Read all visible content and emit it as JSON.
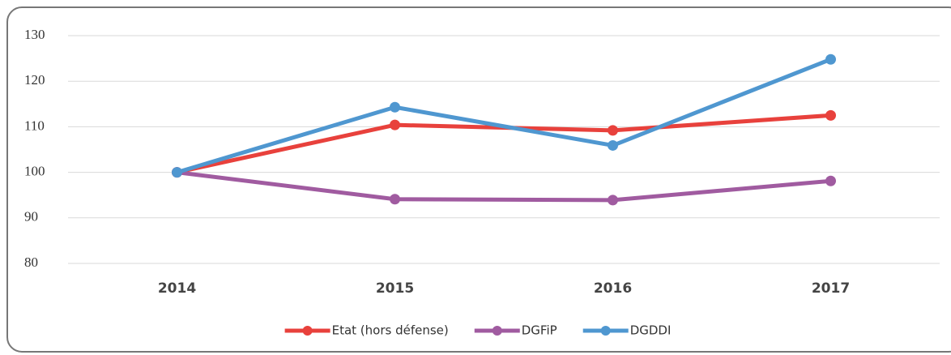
{
  "chart_data": {
    "type": "line",
    "categories": [
      "2014",
      "2015",
      "2016",
      "2017"
    ],
    "series": [
      {
        "name": "Etat (hors défense)",
        "color": "#e8413c",
        "values": [
          100,
          110.4,
          109.2,
          112.5
        ]
      },
      {
        "name": "DGFiP",
        "color": "#a05ba0",
        "values": [
          100,
          94.1,
          93.9,
          98.1
        ]
      },
      {
        "name": "DGDDI",
        "color": "#4f97d0",
        "values": [
          100,
          114.3,
          105.9,
          124.8
        ]
      }
    ],
    "ylim": [
      80,
      130
    ],
    "yticks": [
      80,
      90,
      100,
      110,
      120,
      130
    ],
    "grid": true,
    "legend": "bottom"
  }
}
